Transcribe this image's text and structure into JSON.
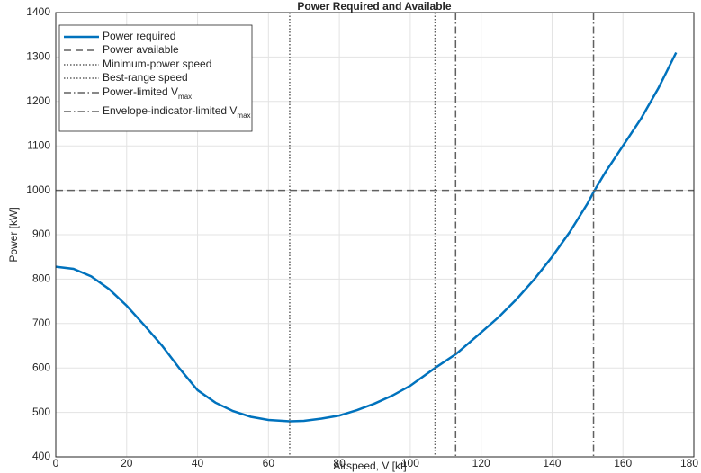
{
  "chart_data": {
    "type": "line",
    "title": "Power Required and Available",
    "xlabel": "Airspeed, V [kt]",
    "ylabel": "Power [kW]",
    "xlim": [
      0,
      180
    ],
    "ylim": [
      400,
      1400
    ],
    "xticks": [
      0,
      20,
      40,
      60,
      80,
      100,
      120,
      140,
      160,
      180
    ],
    "yticks": [
      400,
      500,
      600,
      700,
      800,
      900,
      1000,
      1100,
      1200,
      1300,
      1400
    ],
    "grid": true,
    "legend": "upper-left",
    "series": [
      {
        "name": "Power required",
        "color": "#0072bd",
        "style": "solid",
        "x": [
          0,
          5,
          10,
          15,
          20,
          25,
          30,
          35,
          40,
          45,
          50,
          55,
          60,
          66,
          70,
          75,
          80,
          85,
          90,
          95,
          100,
          107,
          113,
          120,
          125,
          130,
          135,
          140,
          145,
          150,
          152,
          155,
          160,
          165,
          170,
          175
        ],
        "values": [
          828,
          823,
          806,
          778,
          740,
          696,
          650,
          598,
          550,
          522,
          503,
          490,
          483,
          480,
          481,
          486,
          493,
          505,
          520,
          538,
          560,
          600,
          632,
          680,
          715,
          755,
          800,
          850,
          906,
          970,
          1000,
          1040,
          1100,
          1160,
          1230,
          1310
        ]
      },
      {
        "name": "Power available",
        "color": "#606060",
        "style": "dashed",
        "hline": 1000
      },
      {
        "name": "Minimum-power speed",
        "color": "#606060",
        "style": "dotted",
        "vline": 66
      },
      {
        "name": "Best-range speed",
        "color": "#606060",
        "style": "dotted",
        "vline": 107
      },
      {
        "name": "Power-limited V",
        "name_sub": "max",
        "color": "#606060",
        "style": "dashdot",
        "vline": 151.7
      },
      {
        "name": "Envelope-indicator-limited V",
        "name_sub": "max",
        "color": "#606060",
        "style": "dashdot",
        "vline": 112.8
      }
    ]
  }
}
